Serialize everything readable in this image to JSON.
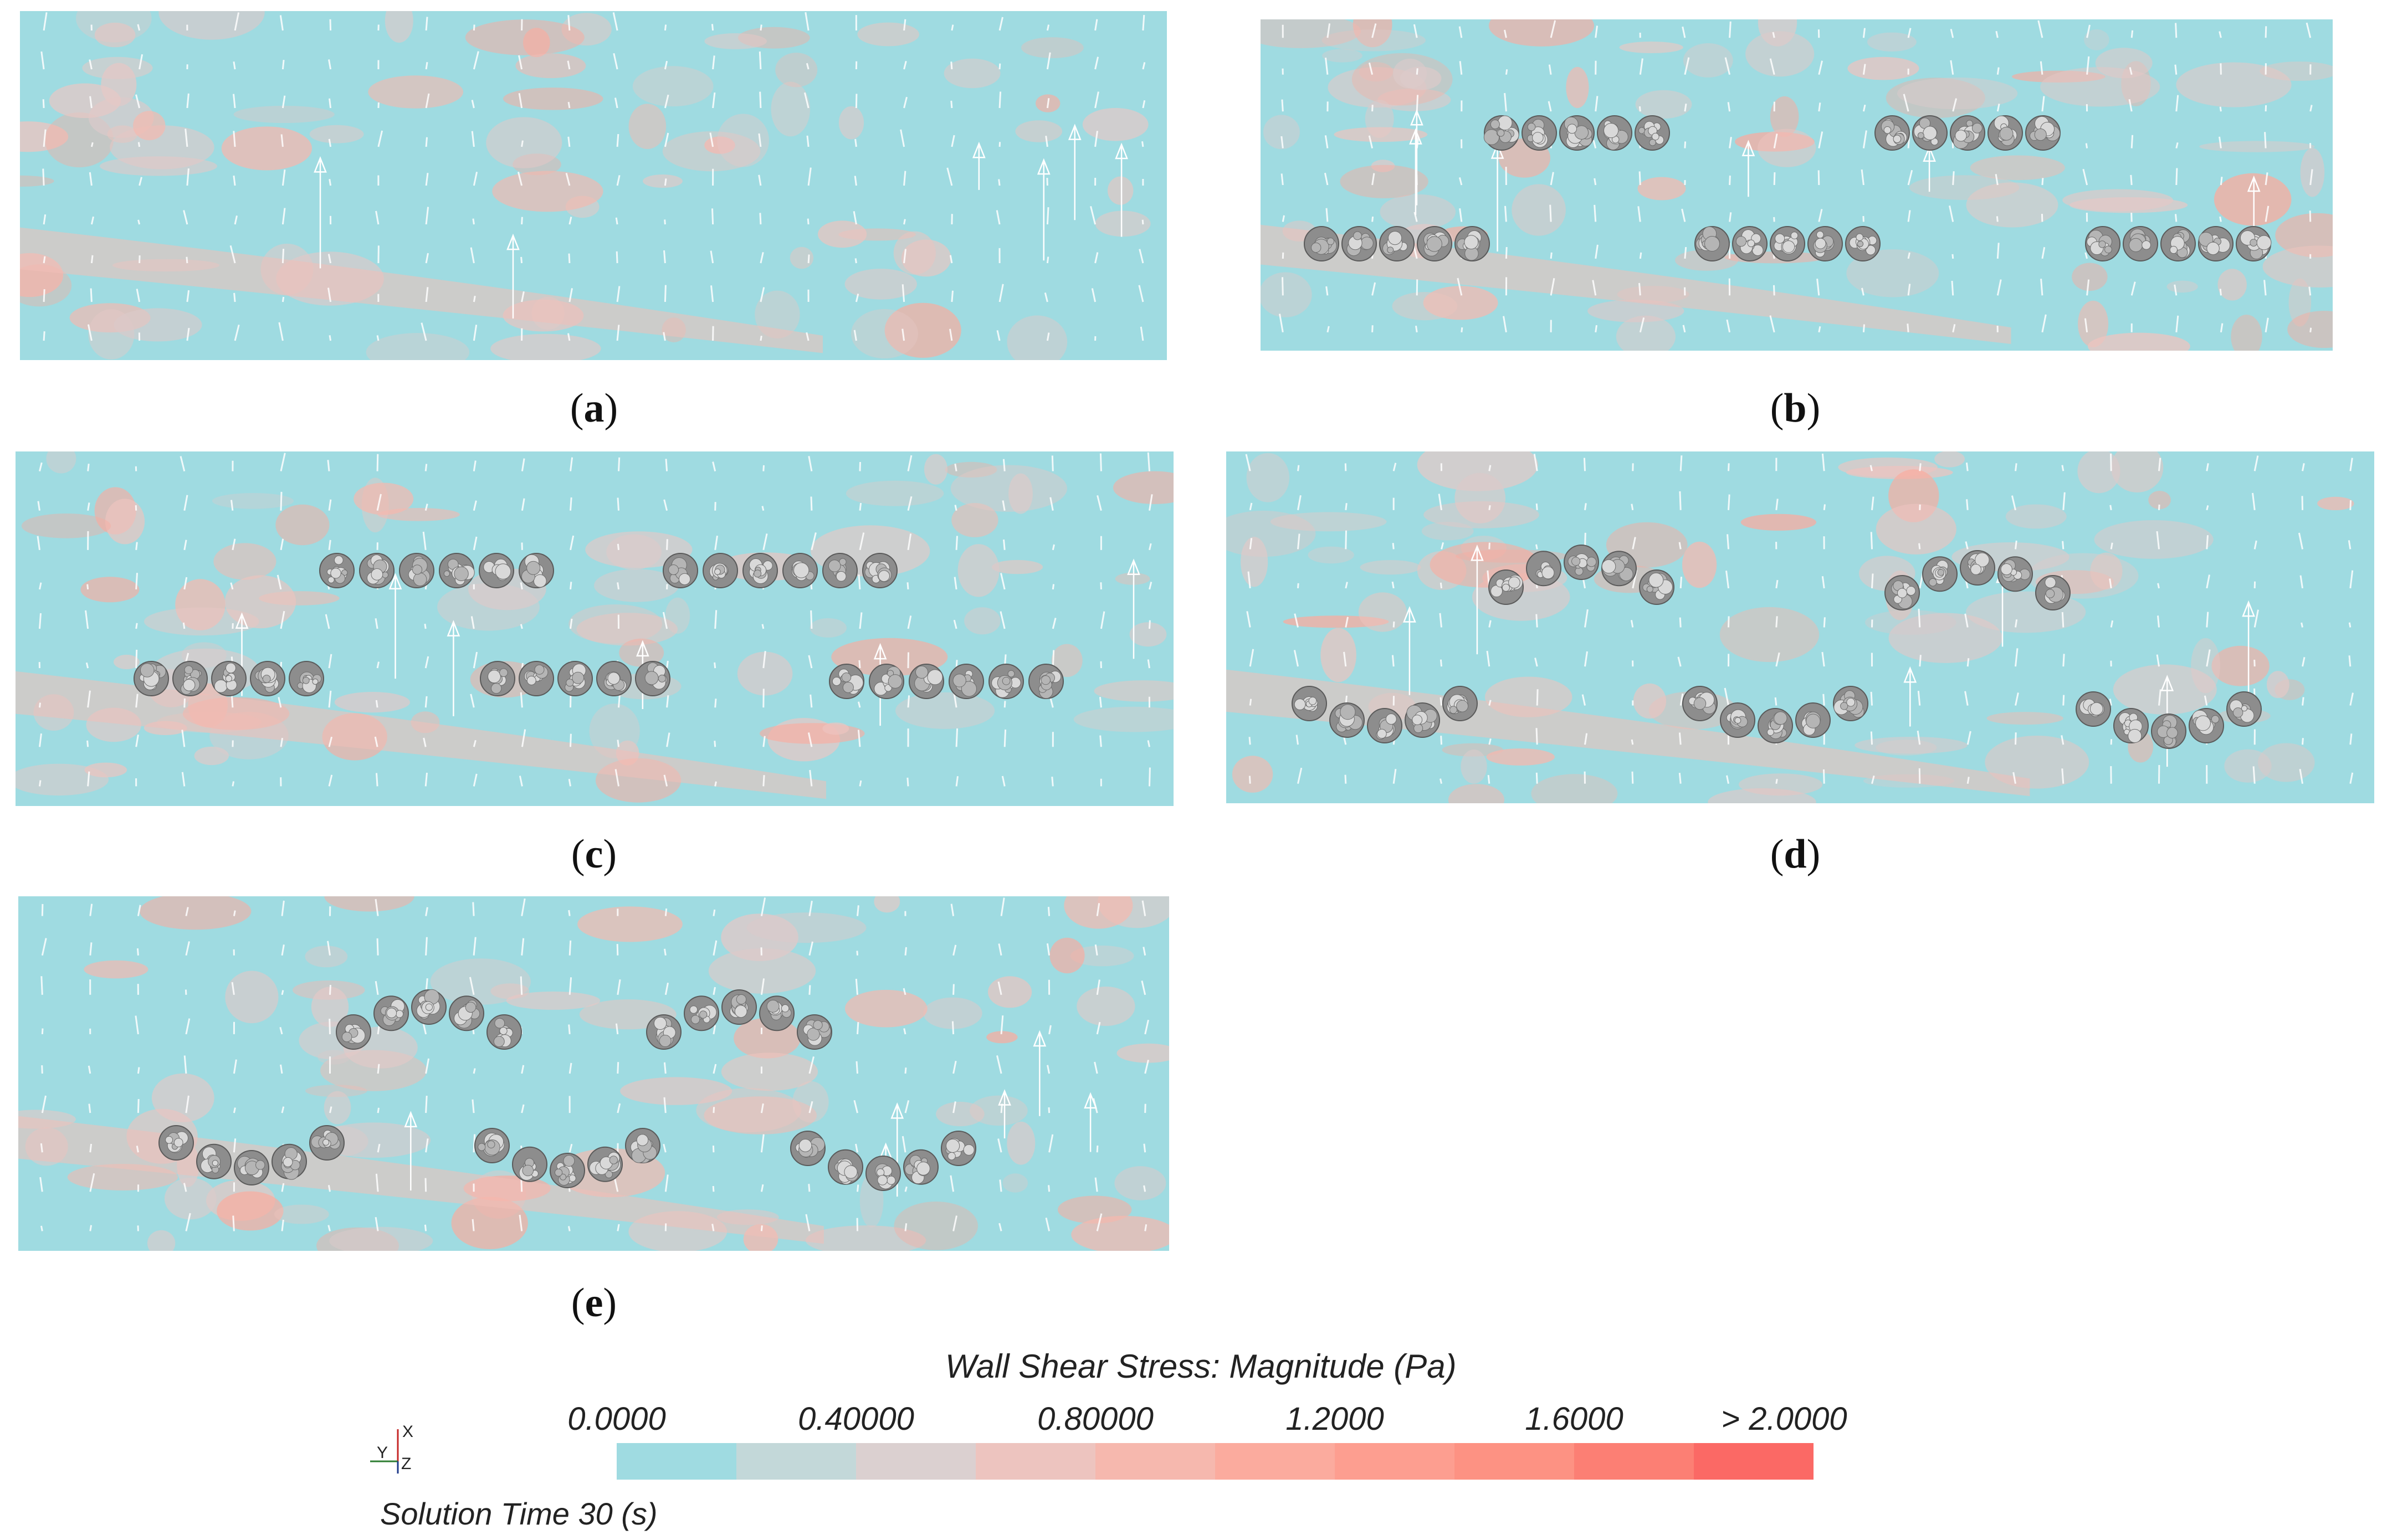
{
  "panels": [
    {
      "id": "a",
      "caption_open": "(",
      "caption_letter": "a",
      "caption_close": ")"
    },
    {
      "id": "b",
      "caption_open": "(",
      "caption_letter": "b",
      "caption_close": ")"
    },
    {
      "id": "c",
      "caption_open": "(",
      "caption_letter": "c",
      "caption_close": ")"
    },
    {
      "id": "d",
      "caption_open": "(",
      "caption_letter": "d",
      "caption_close": ")"
    },
    {
      "id": "e",
      "caption_open": "(",
      "caption_letter": "e",
      "caption_close": ")"
    }
  ],
  "legend": {
    "title": "Wall Shear Stress: Magnitude (Pa)",
    "ticks": [
      "0.0000",
      "0.40000",
      "0.80000",
      "1.2000",
      "1.6000",
      "> 2.0000"
    ],
    "colors": [
      "#9fdbe1",
      "#c3d8d9",
      "#dbd0d0",
      "#edc4bf",
      "#f6b8ae",
      "#fbab9e",
      "#fd9e90",
      "#fd9283",
      "#fc7f74",
      "#fb6965"
    ]
  },
  "axes_triad": {
    "x": "X",
    "y": "Y",
    "z": "Z"
  },
  "solution_time": "Solution Time 30 (s)"
}
